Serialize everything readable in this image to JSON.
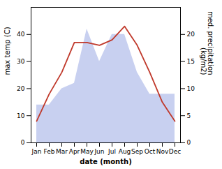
{
  "chart_data": {
    "type": "line",
    "categories": [
      "Jan",
      "Feb",
      "Mar",
      "Apr",
      "May",
      "Jun",
      "Jul",
      "Aug",
      "Sep",
      "Oct",
      "Nov",
      "Dec"
    ],
    "series": [
      {
        "type": "area",
        "axis": "y2",
        "color": "#c8d0f0",
        "values": [
          7,
          7,
          10,
          11,
          21,
          15,
          20,
          20,
          13,
          9,
          9,
          9
        ]
      },
      {
        "type": "line",
        "color": "#c0392b",
        "values": [
          8,
          18,
          26,
          37,
          37,
          36,
          38,
          43,
          36,
          26,
          15,
          8
        ]
      }
    ],
    "xlabel": "date (month)",
    "ylabel": "max temp (C)",
    "y2label": "med. precipitation\n(kg/m2)",
    "ylim": [
      0,
      50
    ],
    "yticks": [
      0,
      10,
      20,
      30,
      40
    ],
    "y2lim": [
      0,
      25
    ],
    "y2ticks": [
      0,
      5,
      10,
      15,
      20
    ],
    "grid": false
  }
}
